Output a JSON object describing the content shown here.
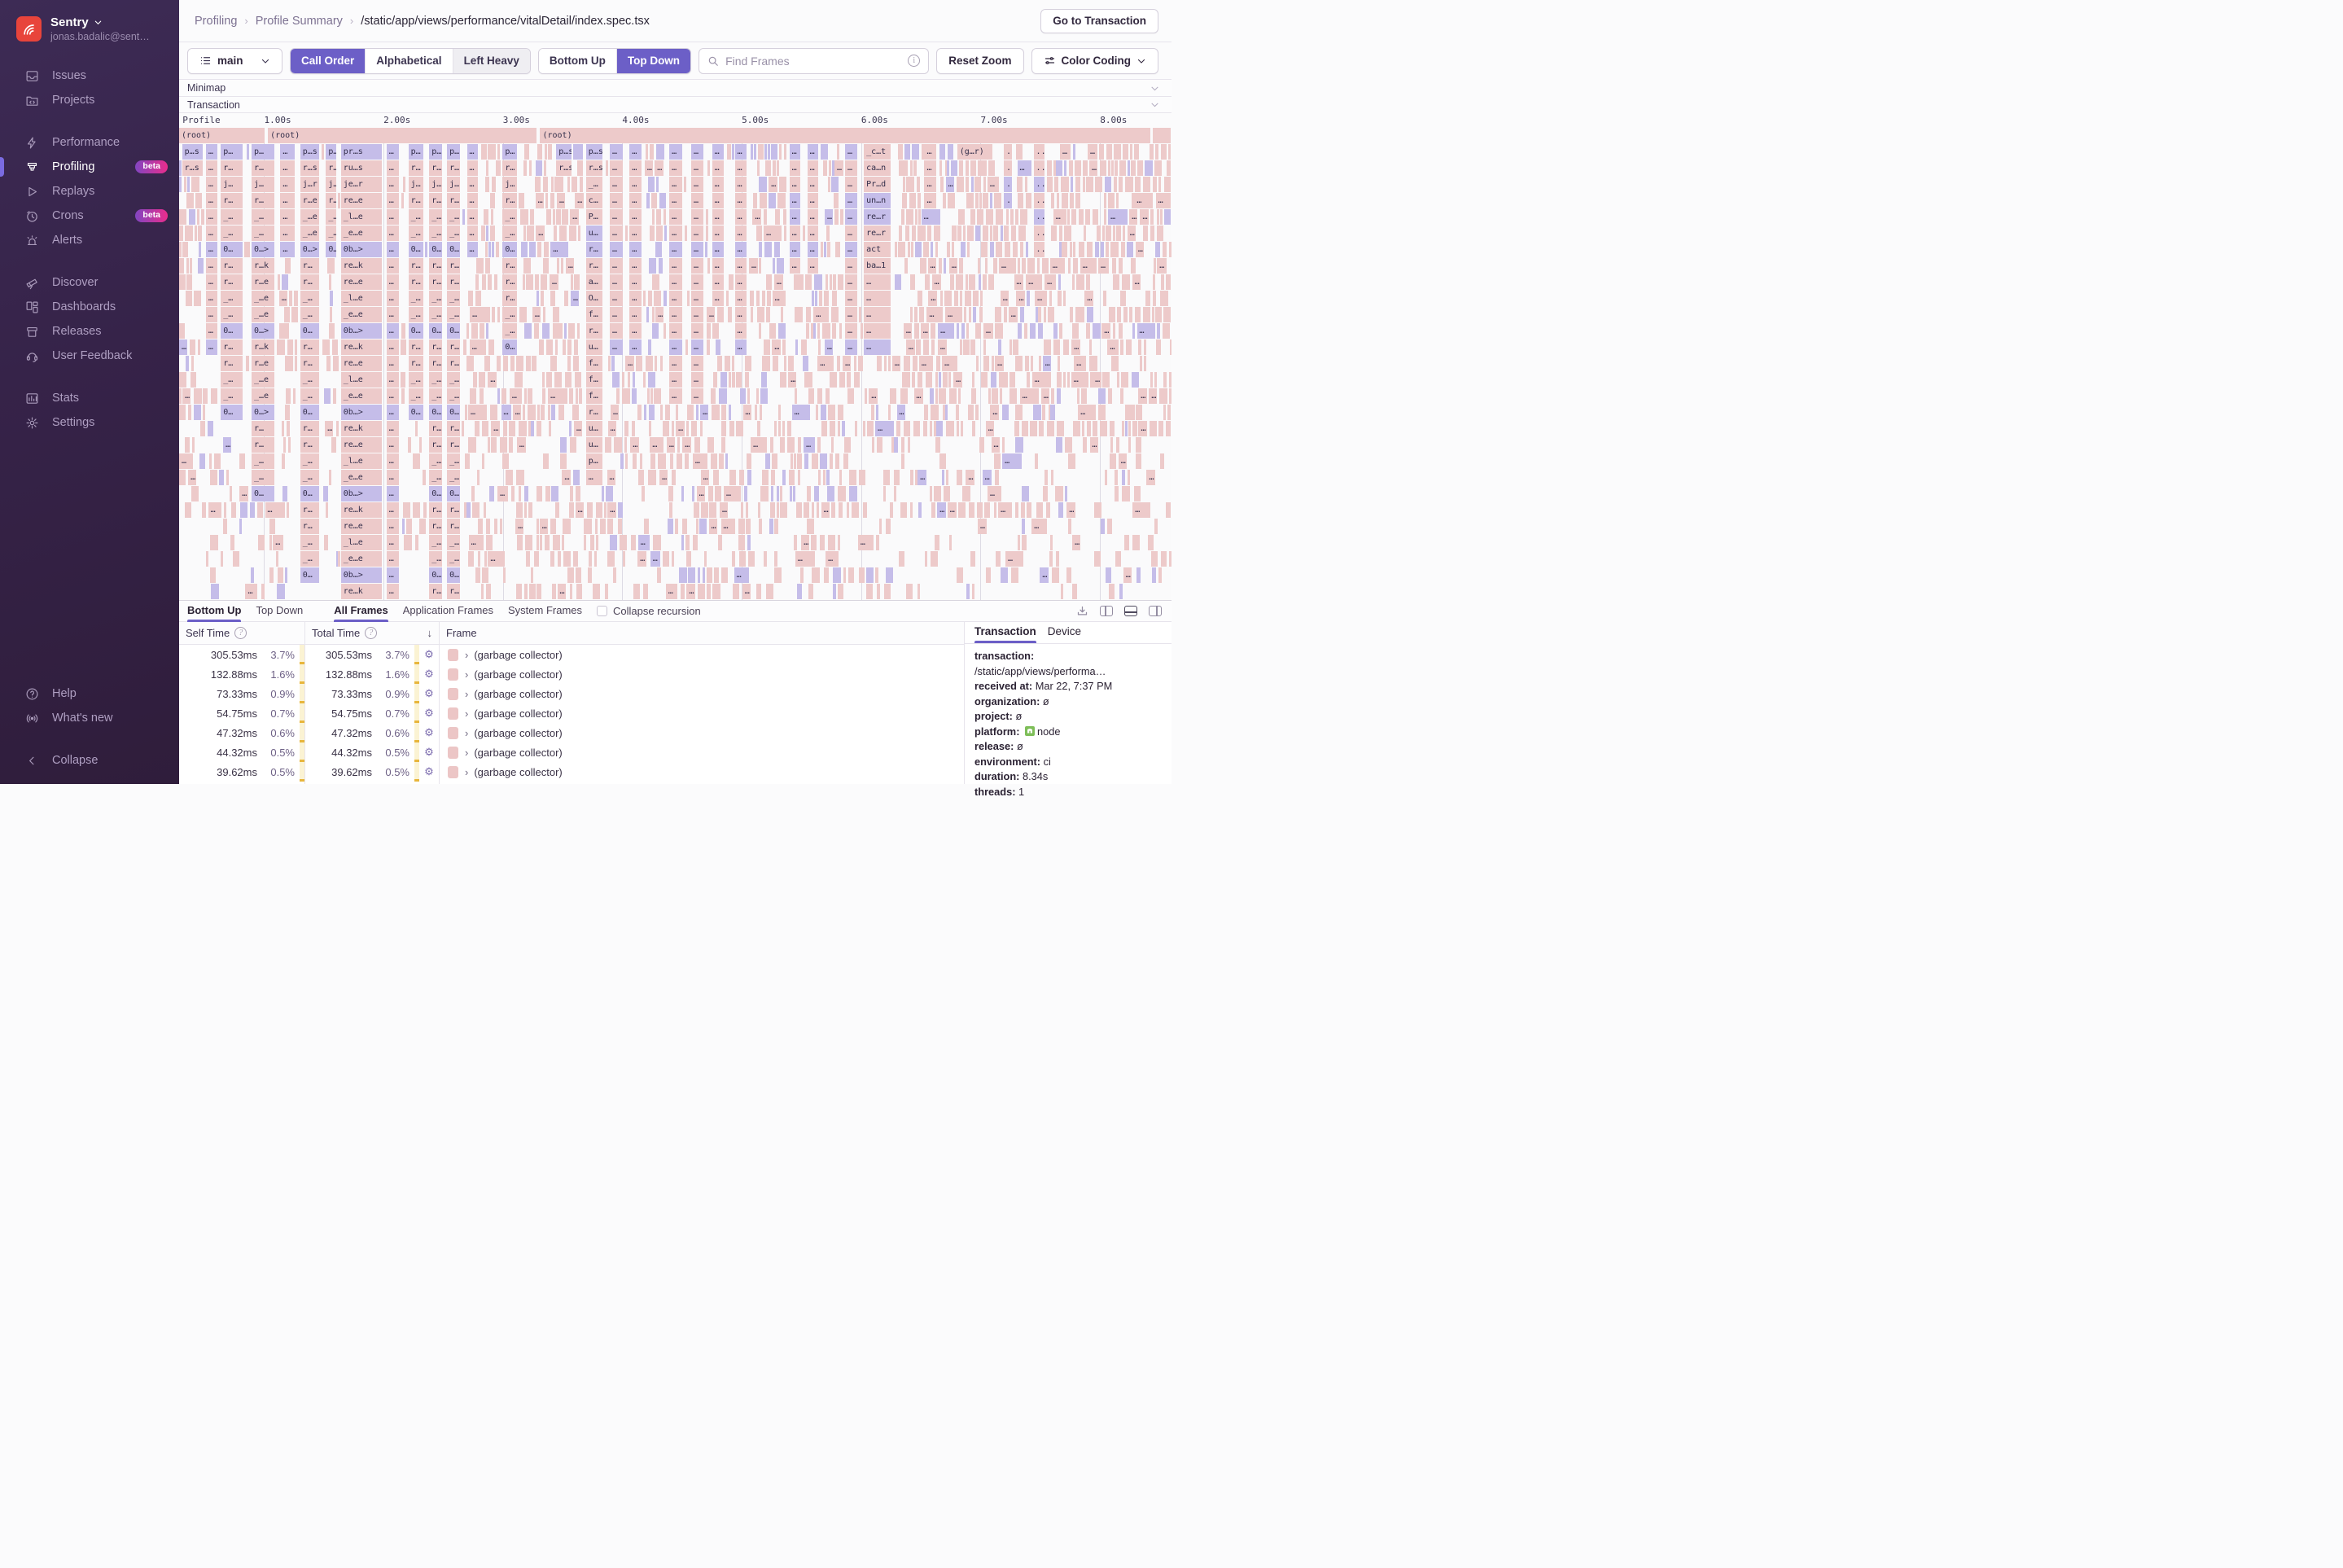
{
  "colors": {
    "accent": "#6C5FC7",
    "flame_pink": "#edcaca",
    "flame_blue": "#c5bde9",
    "logo_red": "#e8443b",
    "badge_gradient": [
      "#8145c1",
      "#ea2d8c"
    ]
  },
  "sidebar": {
    "org_name": "Sentry",
    "user_email": "jonas.badalic@sent…",
    "sections": [
      [
        {
          "id": "issues",
          "label": "Issues",
          "icon": "issues"
        },
        {
          "id": "projects",
          "label": "Projects",
          "icon": "projects"
        }
      ],
      [
        {
          "id": "performance",
          "label": "Performance",
          "icon": "performance"
        },
        {
          "id": "profiling",
          "label": "Profiling",
          "icon": "profiling",
          "active": true,
          "badge": "beta"
        },
        {
          "id": "replays",
          "label": "Replays",
          "icon": "replays"
        },
        {
          "id": "crons",
          "label": "Crons",
          "icon": "crons",
          "badge": "beta"
        },
        {
          "id": "alerts",
          "label": "Alerts",
          "icon": "alerts"
        }
      ],
      [
        {
          "id": "discover",
          "label": "Discover",
          "icon": "discover"
        },
        {
          "id": "dashboards",
          "label": "Dashboards",
          "icon": "dashboards"
        },
        {
          "id": "releases",
          "label": "Releases",
          "icon": "releases"
        },
        {
          "id": "user-feedback",
          "label": "User Feedback",
          "icon": "user-feedback"
        }
      ],
      [
        {
          "id": "stats",
          "label": "Stats",
          "icon": "stats"
        },
        {
          "id": "settings",
          "label": "Settings",
          "icon": "settings"
        }
      ]
    ],
    "bottom": [
      {
        "id": "help",
        "label": "Help",
        "icon": "help"
      },
      {
        "id": "whats-new",
        "label": "What's new",
        "icon": "whats-new"
      },
      {
        "id": "collapse",
        "label": "Collapse",
        "icon": "collapse",
        "gap_before": true
      }
    ]
  },
  "header": {
    "breadcrumbs": [
      "Profiling",
      "Profile Summary",
      "/static/app/views/performance/vitalDetail/index.spec.tsx"
    ],
    "go_to_transaction": "Go to Transaction"
  },
  "toolbar": {
    "thread_select": "main",
    "sort_group": [
      "Call Order",
      "Alphabetical",
      "Left Heavy"
    ],
    "sort_active": 0,
    "dir_group": [
      "Bottom Up",
      "Top Down"
    ],
    "dir_active": 1,
    "search_placeholder": "Find Frames",
    "reset_zoom": "Reset Zoom",
    "color_coding": "Color Coding"
  },
  "collapsers": {
    "minimap": "Minimap",
    "transaction": "Transaction"
  },
  "flamegraph": {
    "axis_ticks": [
      {
        "label": "Profile",
        "x": 0.35
      },
      {
        "label": "1.00s",
        "x": 8.57
      },
      {
        "label": "2.00s",
        "x": 20.6
      },
      {
        "label": "3.00s",
        "x": 32.63
      },
      {
        "label": "4.00s",
        "x": 44.66
      },
      {
        "label": "5.00s",
        "x": 56.7
      },
      {
        "label": "6.00s",
        "x": 68.73
      },
      {
        "label": "7.00s",
        "x": 80.76
      },
      {
        "label": "8.00s",
        "x": 92.8
      }
    ],
    "gridlines": [
      8.57,
      20.6,
      32.63,
      44.66,
      56.7,
      68.73,
      80.76,
      92.8
    ],
    "rows": 29,
    "roots": [
      {
        "x": 0,
        "w": 8.72,
        "label": "(root)"
      },
      {
        "x": 8.95,
        "w": 27.18,
        "label": "(root)"
      },
      {
        "x": 36.38,
        "w": 61.55,
        "label": "(root)"
      },
      {
        "x": 98.15,
        "w": 1.85,
        "label": ""
      }
    ],
    "stacks": [
      {
        "x": 0.3,
        "w": 2.2,
        "f": [
          "p…s|b",
          "r…s|p"
        ]
      },
      {
        "x": 2.7,
        "w": 1.2,
        "f": [
          "…|b",
          "…|p",
          "…|p",
          "…|p",
          "…|p",
          "…|p",
          "…|b",
          "…|p",
          "…|p",
          "…|p",
          "…|p",
          "…|p",
          "…|b"
        ]
      },
      {
        "x": 4.2,
        "w": 2.3,
        "f": [
          "p…|b",
          "r…|p",
          "j…|p",
          "r…|p",
          "_…|p",
          "_…|p",
          "0…|b",
          "r…|p",
          "r…|p",
          "_…|p",
          "_…|p",
          "0…|b",
          "r…|p",
          "r…|p",
          "_…|p",
          "_…|p",
          "0…|b"
        ]
      },
      {
        "x": 7.3,
        "w": 2.4,
        "f": [
          "p…|b",
          "r…|p",
          "j…|p",
          "r…|p",
          "_…|p",
          "_…|p",
          "0…>|b",
          "r…k|p",
          "r…e|p",
          "_…e|p",
          "_…e|p",
          "0…>|b",
          "r…k|p",
          "r…e|p",
          "_…e|p",
          "_…e|p",
          "0…>|b",
          "r…|p",
          "r…|p",
          "_…|p",
          "_…|p",
          "0…|b"
        ]
      },
      {
        "x": 10.2,
        "w": 1.5,
        "f": [
          "…|b",
          "…|p",
          "…|p",
          "…|p",
          "…|p",
          "…|p",
          "…|b"
        ]
      },
      {
        "x": 12.2,
        "w": 2.0,
        "f": [
          "p…s|b",
          "r…s|p",
          "j…r|p",
          "r…e|p",
          "_…e|p",
          "_…e|p",
          "0…>|b",
          "r…|p",
          "r…|p",
          "_…|p",
          "_…|p",
          "0…|b",
          "r…|p",
          "r…|p",
          "_…|p",
          "_…|p",
          "0…|b",
          "r…|p",
          "r…|p",
          "_…|p",
          "_…|p",
          "0…|b",
          "r…|p",
          "r…|p",
          "_…|p",
          "_…|p",
          "0…|b"
        ]
      },
      {
        "x": 14.8,
        "w": 1.1,
        "f": [
          "p…|b",
          "r…|p",
          "j…|p",
          "r…|p",
          "_…|p",
          "_…|p",
          "0…|b"
        ]
      },
      {
        "x": 16.3,
        "w": 4.2,
        "f": [
          "pr…s|b",
          "ru…s|p",
          "je…r|p",
          "re…e|p",
          "_l…e|p",
          "_e…e|p",
          "0b…>|b",
          "re…k|p",
          "re…e|p",
          "_l…e|p",
          "_e…e|p",
          "0b…>|b",
          "re…k|p",
          "re…e|p",
          "_l…e|p",
          "_e…e|p",
          "0b…>|b",
          "re…k|p",
          "re…e|p",
          "_l…e|p",
          "_e…e|p",
          "0b…>|b",
          "re…k|p",
          "re…e|p",
          "_l…e|p",
          "_e…e|p",
          "0b…>|b",
          "re…k|p"
        ]
      },
      {
        "x": 20.9,
        "w": 1.3,
        "f": [
          "…|b",
          "…|p",
          "…|p",
          "…|p",
          "…|p",
          "…|p",
          "…|b",
          "…|p",
          "…|p",
          "…|p",
          "…|p",
          "…|b",
          "…|p",
          "…|p",
          "…|p",
          "…|p",
          "…|b",
          "…|p",
          "…|p",
          "…|p",
          "…|p",
          "…|b",
          "…|p",
          "…|p",
          "…|p",
          "…|p",
          "…|b",
          "…|p"
        ]
      },
      {
        "x": 23.1,
        "w": 1.6,
        "f": [
          "p…|b",
          "r…|p",
          "j…|p",
          "r…|p",
          "_…|p",
          "_…|p",
          "0…|b",
          "r…|p",
          "r…|p",
          "_…|p",
          "_…|p",
          "0…|b",
          "r…|p",
          "r…|p",
          "_…|p",
          "_…|p",
          "0…|b"
        ]
      },
      {
        "x": 25.2,
        "w": 1.4,
        "f": [
          "p…|b",
          "r…|p",
          "j…|p",
          "r…|p",
          "_…|p",
          "_…|p",
          "0…|b",
          "r…|p",
          "r…|p",
          "_…|p",
          "_…|p",
          "0…|b",
          "r…|p",
          "r…|p",
          "_…|p",
          "_…|p",
          "0…|b",
          "r…|p",
          "r…|p",
          "_…|p",
          "_…|p",
          "0…|b",
          "r…|p",
          "r…|p",
          "_…|p",
          "_…|p",
          "0…|b",
          "r…|p"
        ]
      },
      {
        "x": 27.0,
        "w": 1.4,
        "f": [
          "p…|b",
          "r…|p",
          "j…|p",
          "r…|p",
          "_…|p",
          "_…|p",
          "0…|b",
          "r…|p",
          "r…|p",
          "_…|p",
          "_…|p",
          "0…|b",
          "r…|p",
          "r…|p",
          "_…|p",
          "_…|p",
          "0…|b",
          "r…|p",
          "r…|p",
          "_…|p",
          "_…|p",
          "0…|b",
          "r…|p",
          "r…|p",
          "_…|p",
          "_…|p",
          "0…|b",
          "r…|p"
        ]
      },
      {
        "x": 29.0,
        "w": 1.2,
        "f": [
          "…|b",
          "…|p",
          "…|p",
          "…|p",
          "…|p",
          "…|p",
          "…|b"
        ]
      },
      {
        "x": 32.6,
        "w": 1.5,
        "f": [
          "p…|b",
          "r…|p",
          "j…|p",
          "r…|p",
          "_…|p",
          "_…|p",
          "0…|b",
          "r…|p",
          "r…|p",
          "r…|p",
          "_…|p",
          "_…|p",
          "0…|b"
        ]
      },
      {
        "x": 38.0,
        "w": 1.6,
        "f": [
          "p…s|b",
          "r…s|p"
        ]
      },
      {
        "x": 41.0,
        "w": 1.7,
        "f": [
          "p…s|b",
          "r…s|p",
          "_…|p",
          "c…|p",
          "P…|p",
          "u…|b",
          "r…|b",
          "r…|p",
          "a…|p",
          "O…|p",
          "f…|p",
          "r…|p",
          "u…|p",
          "f…|p",
          "f…|p",
          "f…|p",
          "r…|p",
          "u…|p",
          "u…|p",
          "p…|p",
          "…|p"
        ]
      },
      {
        "x": 43.4,
        "w": 1.4,
        "f": [
          "…|b",
          "…|p",
          "…|p",
          "…|p",
          "…|p",
          "…|p",
          "…|b",
          "…|p",
          "…|p",
          "…|p",
          "…|p",
          "…|p",
          "…|b"
        ]
      },
      {
        "x": 45.4,
        "w": 1.3,
        "f": [
          "…|b",
          "…|p",
          "…|p",
          "…|p",
          "…|p",
          "…|p",
          "…|b",
          "…|p",
          "…|p",
          "…|p",
          "…|p",
          "…|p",
          "…|b"
        ]
      },
      {
        "x": 49.4,
        "w": 1.4,
        "f": [
          "…|b",
          "…|p",
          "…|p",
          "…|p",
          "…|p",
          "…|p",
          "…|b",
          "…|p",
          "…|p",
          "…|p",
          "…|p",
          "…|p",
          "…|b",
          "…|p",
          "…|p",
          "…|p"
        ]
      },
      {
        "x": 51.6,
        "w": 1.3,
        "f": [
          "…|b",
          "…|p",
          "…|p",
          "…|p",
          "…|p",
          "…|p",
          "…|b",
          "…|p",
          "…|p",
          "…|p",
          "…|p",
          "…|p",
          "…|b",
          "…|p",
          "…|p",
          "…|p"
        ]
      },
      {
        "x": 53.7,
        "w": 1.3,
        "f": [
          "…|b",
          "…|p",
          "…|p",
          "…|p",
          "…|p",
          "…|p",
          "…|b",
          "…|p",
          "…|p",
          "…|p"
        ]
      },
      {
        "x": 56.0,
        "w": 1.3,
        "f": [
          "…|b",
          "…|p",
          "…|p",
          "…|p",
          "…|p",
          "…|p",
          "…|b",
          "…|p",
          "…|p",
          "…|p",
          "…|p",
          "…|p",
          "…|b"
        ]
      },
      {
        "x": 61.5,
        "w": 1.2,
        "f": [
          "…|b",
          "…|p",
          "…|p",
          "…|b",
          "…|b",
          "…|p",
          "…|b",
          "…|p"
        ]
      },
      {
        "x": 63.3,
        "w": 1.2,
        "f": [
          "…|b",
          "…|p",
          "…|p",
          "…|p",
          "…|p",
          "…|p",
          "…|b",
          "…|p"
        ]
      },
      {
        "x": 67.1,
        "w": 1.3,
        "f": [
          "…|b",
          "…|p",
          "…|p",
          "…|b",
          "…|b",
          "…|p",
          "…|b",
          "…|p",
          "…|p",
          "…|p",
          "…|p",
          "…|p",
          "…|b"
        ]
      },
      {
        "x": 69.0,
        "w": 2.8,
        "f": [
          "_c…t|p",
          "ca…n|p",
          "Pr…d|p",
          "un…n|b",
          "re…r|b",
          "re…r|p",
          "act|p",
          "ba…1|p",
          "…|p",
          "…|p",
          "…|p",
          "…|p",
          "…|b"
        ]
      },
      {
        "x": 75.1,
        "w": 1.3,
        "f": [
          "…|p",
          "…|p",
          "…|p",
          "…|p"
        ]
      },
      {
        "x": 78.4,
        "w": 3.6,
        "f": [
          "(g…r)|p"
        ]
      },
      {
        "x": 83.1,
        "w": 0.9,
        "f": [
          "..|p",
          "..|p",
          "..|b",
          "..|b"
        ]
      },
      {
        "x": 86.1,
        "w": 1.2,
        "f": [
          "..|p",
          "..|p",
          "..|b",
          "..|p",
          "..|b",
          "..|p",
          "..|p"
        ]
      }
    ],
    "noise": {
      "seed": 1337,
      "bands": [
        {
          "rows": [
            1,
            2
          ],
          "segs": [
            [
              0,
              100,
              0.93
            ]
          ]
        },
        {
          "rows": [
            3,
            7
          ],
          "segs": [
            [
              0,
              100,
              0.88
            ]
          ]
        },
        {
          "rows": [
            8,
            13
          ],
          "segs": [
            [
              0,
              100,
              0.8
            ]
          ]
        },
        {
          "rows": [
            14,
            18
          ],
          "segs": [
            [
              0,
              100,
              0.72
            ]
          ]
        },
        {
          "rows": [
            19,
            23
          ],
          "segs": [
            [
              0,
              36,
              0.55
            ],
            [
              36,
              72,
              0.62
            ],
            [
              72,
              100,
              0.5
            ]
          ]
        },
        {
          "rows": [
            24,
            28
          ],
          "segs": [
            [
              2,
              16,
              0.4
            ],
            [
              16,
              36,
              0.5
            ],
            [
              36,
              60,
              0.55
            ],
            [
              60,
              72,
              0.4
            ],
            [
              72,
              90,
              0.25
            ],
            [
              90,
              100,
              0.45
            ]
          ]
        }
      ],
      "blue_rows": [
        7,
        12,
        17,
        22,
        27
      ]
    }
  },
  "bottom_panel": {
    "view_tabs": [
      "Bottom Up",
      "Top Down"
    ],
    "view_active": 0,
    "frame_tabs": [
      "All Frames",
      "Application Frames",
      "System Frames"
    ],
    "frame_active": 0,
    "collapse_recursion": "Collapse recursion",
    "headers": {
      "self": "Self Time",
      "total": "Total Time",
      "frame": "Frame"
    },
    "rows": [
      {
        "self": "305.53ms",
        "self_pct": "3.7%",
        "total": "305.53ms",
        "total_pct": "3.7%",
        "frame": "(garbage collector)"
      },
      {
        "self": "132.88ms",
        "self_pct": "1.6%",
        "total": "132.88ms",
        "total_pct": "1.6%",
        "frame": "(garbage collector)"
      },
      {
        "self": "73.33ms",
        "self_pct": "0.9%",
        "total": "73.33ms",
        "total_pct": "0.9%",
        "frame": "(garbage collector)"
      },
      {
        "self": "54.75ms",
        "self_pct": "0.7%",
        "total": "54.75ms",
        "total_pct": "0.7%",
        "frame": "(garbage collector)"
      },
      {
        "self": "47.32ms",
        "self_pct": "0.6%",
        "total": "47.32ms",
        "total_pct": "0.6%",
        "frame": "(garbage collector)"
      },
      {
        "self": "44.32ms",
        "self_pct": "0.5%",
        "total": "44.32ms",
        "total_pct": "0.5%",
        "frame": "(garbage collector)"
      },
      {
        "self": "39.62ms",
        "self_pct": "0.5%",
        "total": "39.62ms",
        "total_pct": "0.5%",
        "frame": "(garbage collector)"
      }
    ]
  },
  "details_panel": {
    "tabs": [
      "Transaction",
      "Device"
    ],
    "active_tab": 0,
    "fields": [
      {
        "label": "transaction:",
        "value": "/static/app/views/performa…"
      },
      {
        "label": "received at:",
        "value": "Mar 22, 7:37 PM"
      },
      {
        "label": "organization:",
        "value": "ø"
      },
      {
        "label": "project:",
        "value": "ø"
      },
      {
        "label": "platform:",
        "value": "node",
        "icon": "node"
      },
      {
        "label": "release:",
        "value": "ø"
      },
      {
        "label": "environment:",
        "value": "ci"
      },
      {
        "label": "duration:",
        "value": "8.34s"
      },
      {
        "label": "threads:",
        "value": "1"
      }
    ]
  }
}
